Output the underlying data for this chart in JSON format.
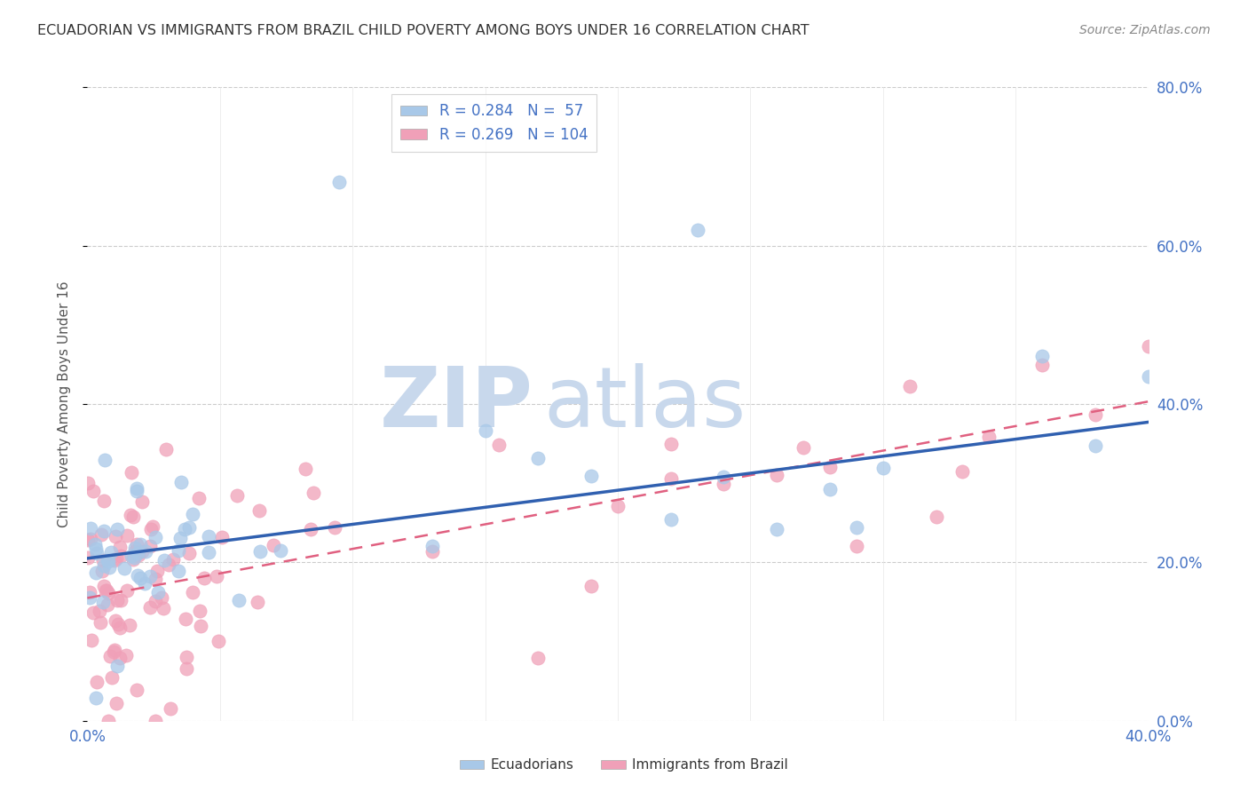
{
  "title": "ECUADORIAN VS IMMIGRANTS FROM BRAZIL CHILD POVERTY AMONG BOYS UNDER 16 CORRELATION CHART",
  "source": "Source: ZipAtlas.com",
  "ylabel": "Child Poverty Among Boys Under 16",
  "xlim": [
    0.0,
    0.4
  ],
  "ylim": [
    0.0,
    0.8
  ],
  "xticks": [
    0.0,
    0.05,
    0.1,
    0.15,
    0.2,
    0.25,
    0.3,
    0.35,
    0.4
  ],
  "yticks": [
    0.0,
    0.2,
    0.4,
    0.6,
    0.8
  ],
  "ecuadorians_R": 0.284,
  "ecuadorians_N": 57,
  "brazil_R": 0.269,
  "brazil_N": 104,
  "blue_scatter_color": "#A8C8E8",
  "pink_scatter_color": "#F0A0B8",
  "blue_line_color": "#3060B0",
  "pink_line_color": "#E06080",
  "watermark_zip_color": "#C8D8E8",
  "watermark_atlas_color": "#C8D8E8",
  "background_color": "#FFFFFF",
  "grid_color": "#CCCCCC",
  "title_color": "#333333",
  "axis_tick_color": "#4472C4",
  "legend_text_color": "#4472C4",
  "source_color": "#888888",
  "ylabel_color": "#555555",
  "ecu_line_intercept": 0.205,
  "ecu_line_slope": 0.43,
  "bra_line_intercept": 0.155,
  "bra_line_slope": 0.62
}
